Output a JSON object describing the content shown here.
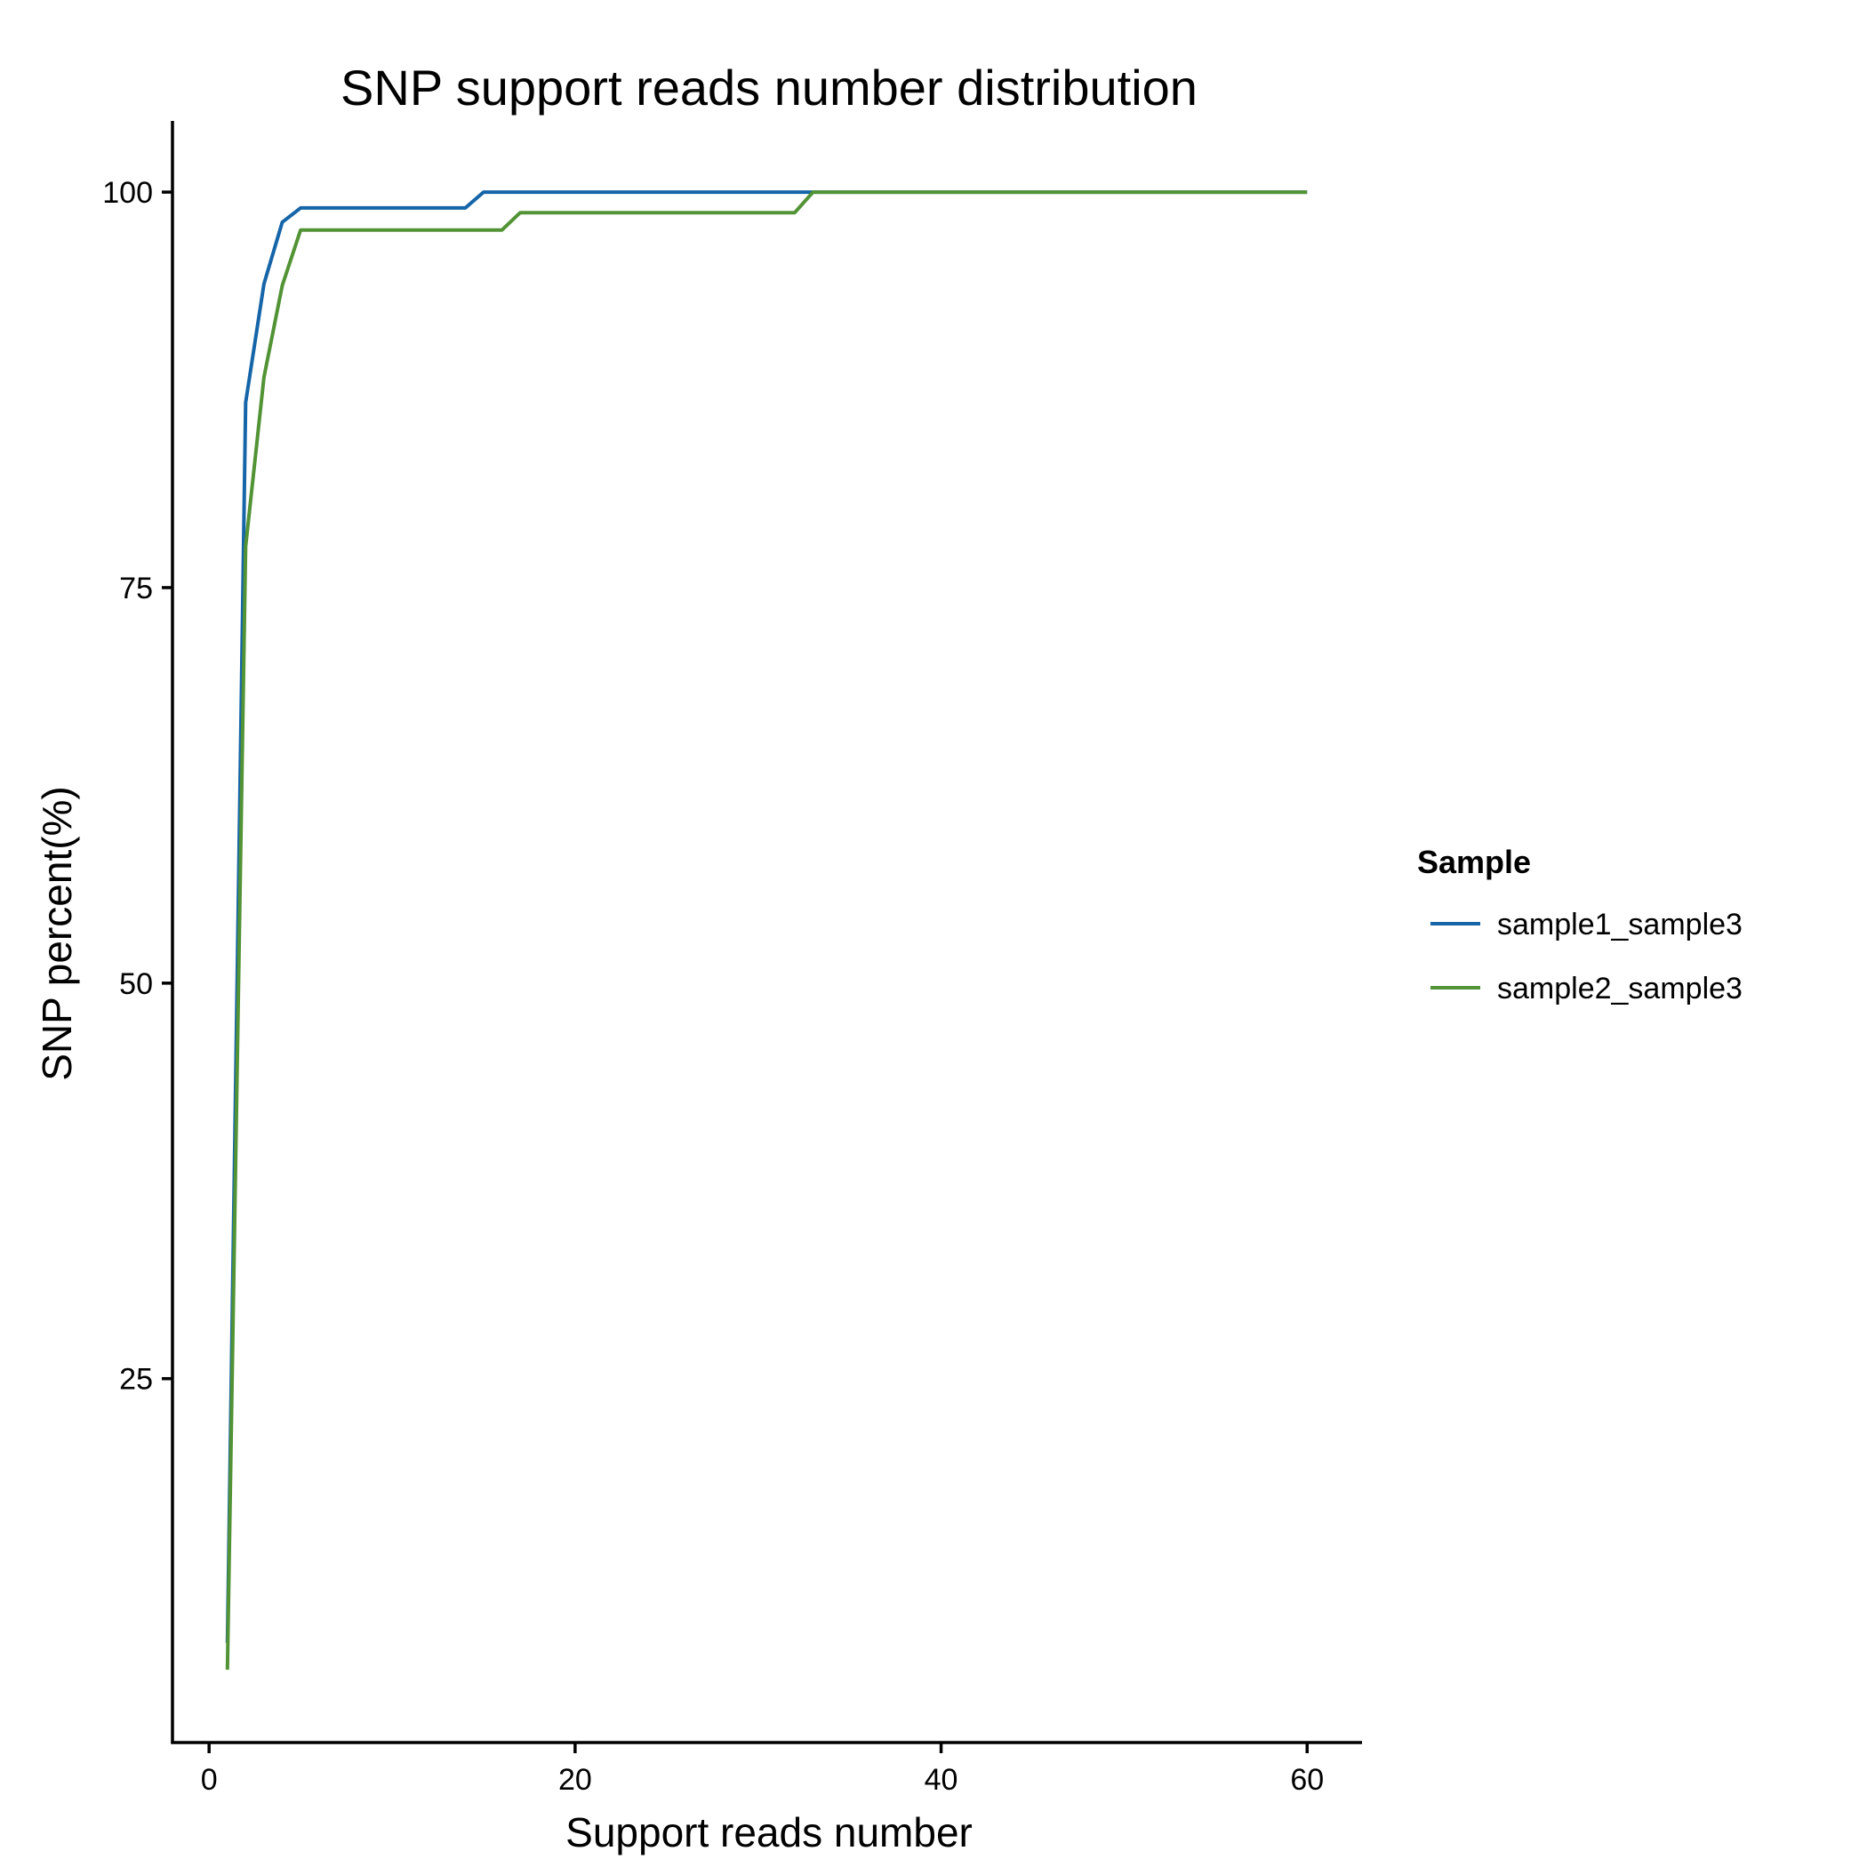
{
  "chart_data": {
    "type": "line",
    "title": "SNP support reads number distribution",
    "xlabel": "Support reads number",
    "ylabel": "SNP percent(%)",
    "xlim": [
      -2,
      63
    ],
    "ylim": [
      2,
      104.5
    ],
    "x_ticks": [
      0,
      20,
      40,
      60
    ],
    "x_tick_labels": [
      "0",
      "20",
      "40",
      "60"
    ],
    "y_ticks": [
      25,
      50,
      75,
      100
    ],
    "y_tick_labels": [
      "25",
      "50",
      "75",
      "100"
    ],
    "grid": false,
    "legend": {
      "title": "Sample",
      "placement": "right"
    },
    "series": [
      {
        "name": "sample1_sample3",
        "color": "#1565a8",
        "points": [
          [
            1,
            8.3
          ],
          [
            2,
            86.7
          ],
          [
            3,
            94.2
          ],
          [
            4,
            98.1
          ],
          [
            5,
            99.0
          ],
          [
            14,
            99.0
          ],
          [
            15,
            100
          ],
          [
            60,
            100
          ]
        ]
      },
      {
        "name": "sample2_sample3",
        "color": "#529335",
        "points": [
          [
            1,
            6.6
          ],
          [
            2,
            77.6
          ],
          [
            3,
            88.3
          ],
          [
            4,
            94.1
          ],
          [
            5,
            97.6
          ],
          [
            16,
            97.6
          ],
          [
            17,
            98.7
          ],
          [
            32,
            98.7
          ],
          [
            33,
            100
          ],
          [
            60,
            100
          ]
        ]
      }
    ]
  }
}
